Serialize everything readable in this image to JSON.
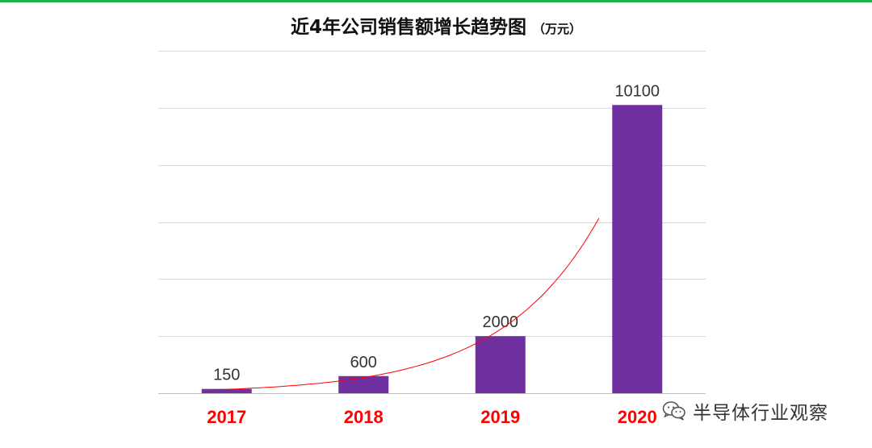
{
  "chart_data": {
    "type": "bar",
    "title": "近4年公司销售额增长趋势图",
    "unit": "（万元）",
    "categories": [
      "2017",
      "2018",
      "2019",
      "2020"
    ],
    "values": [
      150,
      600,
      2000,
      10100
    ],
    "data_labels": [
      "150",
      "600",
      "2000",
      "10100"
    ],
    "ylim": [
      0,
      12000
    ],
    "ygrid_step": 2000,
    "grid": true,
    "bar_color": "#7030a0",
    "category_label_color": "#ff0000",
    "trendline": {
      "type": "exponential",
      "color": "#ff0000"
    }
  },
  "watermark": {
    "text": "半导体行业观察",
    "icon": "wechat-icon"
  }
}
